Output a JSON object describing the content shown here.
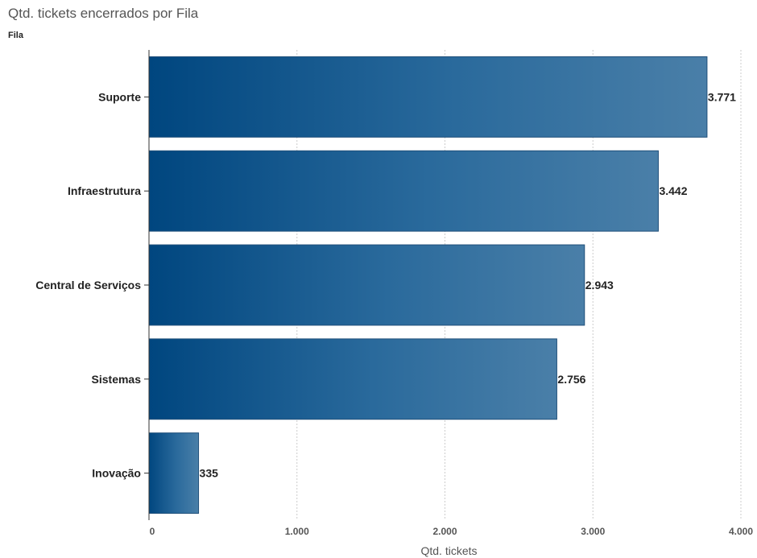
{
  "chart_data": {
    "type": "bar",
    "orientation": "horizontal",
    "title": "Qtd. tickets encerrados por Fila",
    "ylabel": "Fila",
    "xlabel": "Qtd. tickets",
    "categories": [
      "Suporte",
      "Infraestrutura",
      "Central de Serviços",
      "Sistemas",
      "Inovação"
    ],
    "values": [
      3771,
      3442,
      2943,
      2756,
      335
    ],
    "value_labels": [
      "3.771",
      "3.442",
      "2.943",
      "2.756",
      "335"
    ],
    "xlim": [
      0,
      4000
    ],
    "xticks": [
      0,
      1000,
      2000,
      3000,
      4000
    ],
    "xtick_labels": [
      "0",
      "1.000",
      "2.000",
      "3.000",
      "4.000"
    ],
    "grid": "vertical dotted",
    "colors": {
      "bar_start": "#00467f",
      "bar_mid": "#2a6a9c",
      "bar_end": "#4a7fa8",
      "grid": "#cccccc"
    }
  }
}
